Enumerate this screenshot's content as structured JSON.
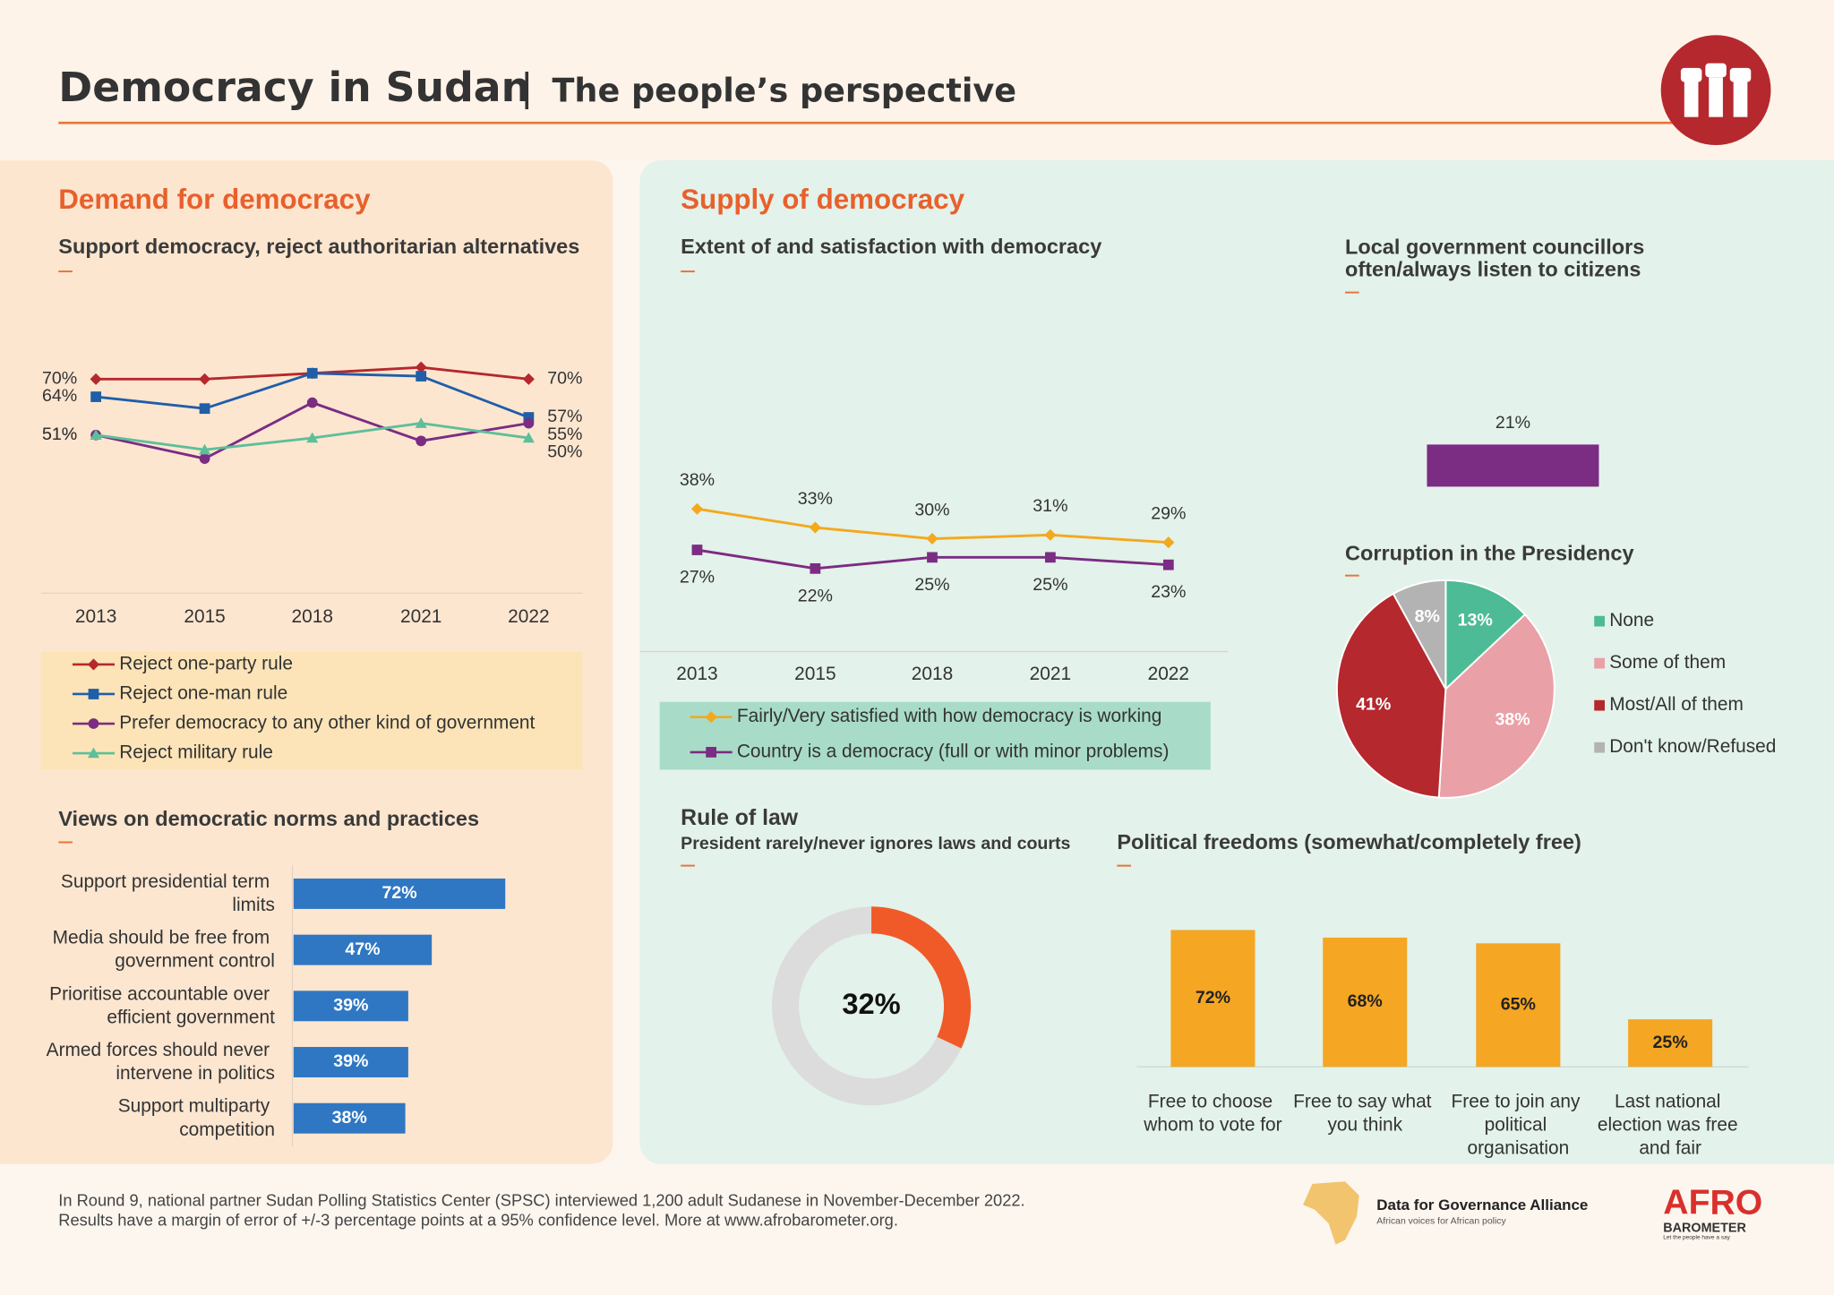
{
  "header": {
    "title": "Democracy in Sudan",
    "subtitle": "The people’s perspective"
  },
  "sections": {
    "demand": "Demand for democracy",
    "supply": "Supply of democracy"
  },
  "chart_data": [
    {
      "type": "line",
      "title": "Support democracy, reject authoritarian alternatives",
      "categories": [
        "2013",
        "2015",
        "2018",
        "2021",
        "2022"
      ],
      "series": [
        {
          "name": "Reject one-party rule",
          "color": "#b5282e",
          "marker": "diamond",
          "values": [
            70,
            70,
            72,
            74,
            70
          ],
          "value_labels": [
            "70%",
            null,
            null,
            null,
            "70%"
          ]
        },
        {
          "name": "Reject one-man rule",
          "color": "#1f5ea8",
          "marker": "square",
          "values": [
            64,
            60,
            72,
            71,
            57
          ],
          "value_labels": [
            "64%",
            null,
            null,
            null,
            "57%"
          ]
        },
        {
          "name": "Prefer democracy to any other kind of government",
          "color": "#7b2c83",
          "marker": "circle",
          "values": [
            51,
            43,
            62,
            49,
            55
          ],
          "value_labels": [
            "51%",
            null,
            null,
            null,
            "55%"
          ]
        },
        {
          "name": "Reject military rule",
          "color": "#5dbf9a",
          "marker": "triangle",
          "values": [
            51,
            46,
            50,
            55,
            50
          ],
          "value_labels": [
            "51%",
            null,
            null,
            null,
            "50%"
          ]
        }
      ]
    },
    {
      "type": "hbar",
      "title": "Views on democratic norms and practices",
      "color": "#2f77c2",
      "categories": [
        "Support presidential term limits",
        "Media should be free from government control",
        "Prioritise accountable over efficient government",
        "Armed forces should never intervene in politics",
        "Support multiparty competition"
      ],
      "values": [
        72,
        47,
        39,
        39,
        38
      ],
      "value_labels": [
        "72%",
        "47%",
        "39%",
        "39%",
        "38%"
      ]
    },
    {
      "type": "line",
      "title": "Extent of and satisfaction with democracy",
      "categories": [
        "2013",
        "2015",
        "2018",
        "2021",
        "2022"
      ],
      "series": [
        {
          "name": "Fairly/Very satisfied with how democracy is working",
          "color": "#f4a81d",
          "marker": "diamond",
          "values": [
            38,
            33,
            30,
            31,
            29
          ],
          "value_labels": [
            "38%",
            "33%",
            "30%",
            "31%",
            "29%"
          ]
        },
        {
          "name": "Country is a democracy (full or with minor problems)",
          "color": "#7b2c83",
          "marker": "square",
          "values": [
            27,
            22,
            25,
            25,
            23
          ],
          "value_labels": [
            "27%",
            "22%",
            "25%",
            "25%",
            "23%"
          ]
        }
      ]
    },
    {
      "type": "bar",
      "title": "Local government councillors often/always listen to citizens",
      "color": "#7b2c83",
      "values": [
        21
      ],
      "value_labels": [
        "21%"
      ]
    },
    {
      "type": "pie",
      "title": "Corruption in the Presidency",
      "categories": [
        "None",
        "Some of them",
        "Most/All of them",
        "Don't know/Refused"
      ],
      "values": [
        13,
        38,
        41,
        8
      ],
      "value_labels": [
        "13%",
        "38%",
        "41%",
        "8%"
      ],
      "colors": [
        "#4dbb95",
        "#e9a0a6",
        "#b5282e",
        "#b3b3b3"
      ]
    },
    {
      "type": "donut",
      "title": "Rule of law",
      "subtitle": "President rarely/never ignores laws and courts",
      "values": [
        32
      ],
      "value_labels": [
        "32%"
      ],
      "color": "#f05a28",
      "track_color": "#dcdcdc"
    },
    {
      "type": "vbar",
      "title": "Political freedoms (somewhat/completely free)",
      "color": "#f5a623",
      "categories": [
        "Free to choose whom to vote for",
        "Free to say what you think",
        "Free to join any political organisation",
        "Last national election was free and fair"
      ],
      "values": [
        72,
        68,
        65,
        25
      ],
      "value_labels": [
        "72%",
        "68%",
        "65%",
        "25%"
      ]
    }
  ],
  "footer": {
    "note": [
      "In Round 9, national partner Sudan Polling Statistics Center (SPSC) interviewed 1,200 adult Sudanese in November-December 2022.",
      "Results have a margin of error of +/-3 percentage points at a 95% confidence level. More at www.afrobarometer.org."
    ],
    "partner": {
      "name": "Data for Governance Alliance",
      "tagline": "African voices for African policy"
    },
    "logo": {
      "name": "AFRO",
      "sub": "BAROMETER",
      "tagline": "Let the people have a say"
    }
  }
}
